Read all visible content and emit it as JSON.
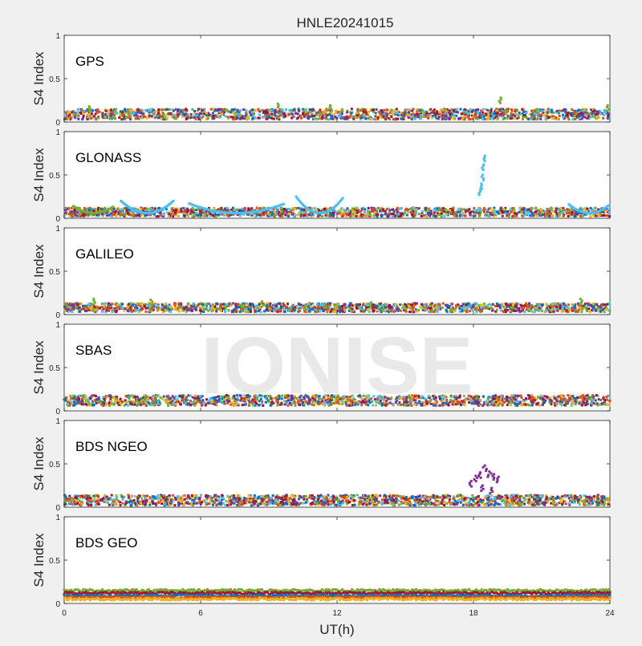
{
  "figure": {
    "title": "HNLE20241015",
    "watermark": "IONISE",
    "xlabel": "UT(h)",
    "background": "#f0f0f0",
    "panel_background": "#ffffff",
    "watermark_color": "#e6e6e6"
  },
  "series_colors": [
    "#0072BD",
    "#D95319",
    "#EDB120",
    "#7E2F8E",
    "#77AC30",
    "#4DBEEE",
    "#A2142F"
  ],
  "chart_data": [
    {
      "type": "scatter",
      "title": "GPS",
      "ylabel": "S4 Index",
      "xlim": [
        0,
        24
      ],
      "ylim": [
        0,
        1
      ],
      "xticks": [
        0,
        6,
        12,
        18,
        24
      ],
      "yticks": [
        0,
        0.5,
        1
      ],
      "grid": false,
      "baseline_range": [
        0.03,
        0.15
      ],
      "spikes": [
        {
          "x": 9.4,
          "y": 0.21
        },
        {
          "x": 19.2,
          "y": 0.28
        },
        {
          "x": 23.9,
          "y": 0.19
        },
        {
          "x": 1.1,
          "y": 0.18
        },
        {
          "x": 11.7,
          "y": 0.19
        }
      ]
    },
    {
      "type": "scatter",
      "title": "GLONASS",
      "ylabel": "S4 Index",
      "xlim": [
        0,
        24
      ],
      "ylim": [
        0,
        1
      ],
      "xticks": [
        0,
        6,
        12,
        18,
        24
      ],
      "yticks": [
        0,
        0.5,
        1
      ],
      "grid": false,
      "baseline_range": [
        0.02,
        0.12
      ],
      "arcs": [
        {
          "x0": 2.5,
          "x1": 4.8,
          "peak": 0.2
        },
        {
          "x0": 5.5,
          "x1": 9.7,
          "peak": 0.17
        },
        {
          "x0": 10.2,
          "x1": 12.3,
          "peak": 0.25
        },
        {
          "x0": 22.2,
          "x1": 24.0,
          "peak": 0.16
        },
        {
          "x0": 0.4,
          "x1": 2.2,
          "peak": 0.14
        }
      ],
      "spikes": [
        {
          "x": 18.5,
          "y": 0.72
        },
        {
          "x": 18.45,
          "y": 0.62
        },
        {
          "x": 18.4,
          "y": 0.5
        },
        {
          "x": 18.35,
          "y": 0.4
        },
        {
          "x": 18.3,
          "y": 0.33
        }
      ]
    },
    {
      "type": "scatter",
      "title": "GALILEO",
      "ylabel": "S4 Index",
      "xlim": [
        0,
        24
      ],
      "ylim": [
        0,
        1
      ],
      "xticks": [
        0,
        6,
        12,
        18,
        24
      ],
      "yticks": [
        0,
        0.5,
        1
      ],
      "grid": false,
      "baseline_range": [
        0.03,
        0.13
      ],
      "spikes": [
        {
          "x": 1.3,
          "y": 0.18
        },
        {
          "x": 3.8,
          "y": 0.17
        },
        {
          "x": 8.7,
          "y": 0.15
        },
        {
          "x": 22.7,
          "y": 0.18
        },
        {
          "x": 13.5,
          "y": 0.14
        }
      ]
    },
    {
      "type": "scatter",
      "title": "SBAS",
      "ylabel": "S4 Index",
      "xlim": [
        0,
        24
      ],
      "ylim": [
        0,
        1
      ],
      "xticks": [
        0,
        6,
        12,
        18,
        24
      ],
      "yticks": [
        0,
        0.5,
        1
      ],
      "grid": false,
      "baseline_range": [
        0.06,
        0.18
      ],
      "spikes": []
    },
    {
      "type": "scatter",
      "title": "BDS NGEO",
      "ylabel": "S4 Index",
      "xlim": [
        0,
        24
      ],
      "ylim": [
        0,
        1
      ],
      "xticks": [
        0,
        6,
        12,
        18,
        24
      ],
      "yticks": [
        0,
        0.5,
        1
      ],
      "grid": false,
      "baseline_range": [
        0.02,
        0.14
      ],
      "spikes": [
        {
          "x": 17.9,
          "y": 0.3
        },
        {
          "x": 18.1,
          "y": 0.36
        },
        {
          "x": 18.3,
          "y": 0.4
        },
        {
          "x": 18.5,
          "y": 0.48
        },
        {
          "x": 18.7,
          "y": 0.41
        },
        {
          "x": 18.9,
          "y": 0.38
        },
        {
          "x": 19.1,
          "y": 0.35
        },
        {
          "x": 18.4,
          "y": 0.25
        },
        {
          "x": 18.8,
          "y": 0.22
        }
      ]
    },
    {
      "type": "scatter",
      "title": "BDS GEO",
      "ylabel": "S4 Index",
      "xlim": [
        0,
        24
      ],
      "ylim": [
        0,
        1
      ],
      "xticks": [
        0,
        6,
        12,
        18,
        24
      ],
      "yticks": [
        0,
        0.5,
        1
      ],
      "grid": false,
      "bands": [
        {
          "y": 0.15,
          "color_index": 4
        },
        {
          "y": 0.12,
          "color_index": 6
        },
        {
          "y": 0.09,
          "color_index": 0
        },
        {
          "y": 0.07,
          "color_index": 1
        },
        {
          "y": 0.05,
          "color_index": 2
        }
      ],
      "spikes": []
    }
  ]
}
